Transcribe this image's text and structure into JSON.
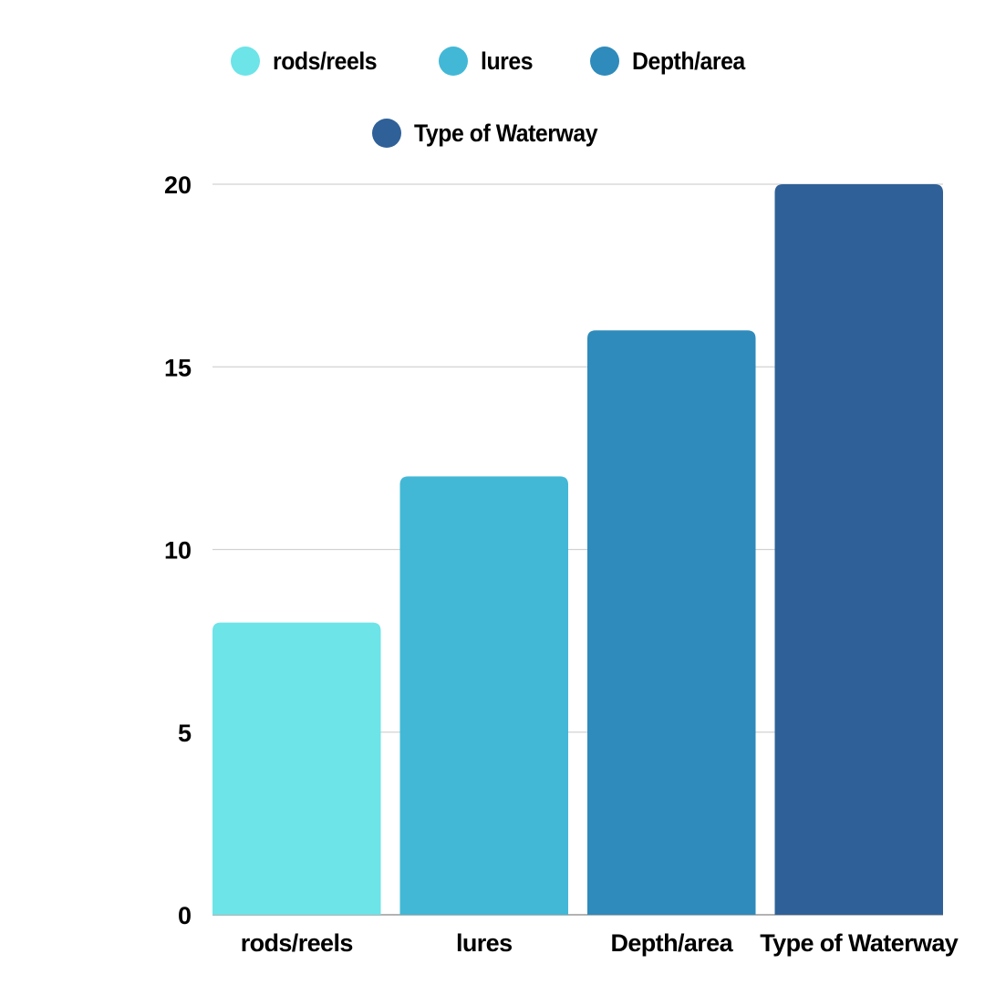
{
  "chart_data": {
    "type": "bar",
    "title": "",
    "xlabel": "",
    "ylabel": "",
    "categories": [
      "rods/reels",
      "lures",
      "Depth/area",
      "Type of Waterway"
    ],
    "values": [
      8,
      12,
      16,
      20
    ],
    "colors": [
      "#6ce4e8",
      "#42b8d6",
      "#2e8bbb",
      "#2f6098"
    ],
    "ylim": [
      0,
      20
    ],
    "yticks": [
      "0",
      "5",
      "10",
      "15",
      "20"
    ],
    "grid": true,
    "legend": {
      "placement": "top-center",
      "entries": [
        "rods/reels",
        "lures",
        "Depth/area",
        "Type of Waterway"
      ]
    }
  }
}
